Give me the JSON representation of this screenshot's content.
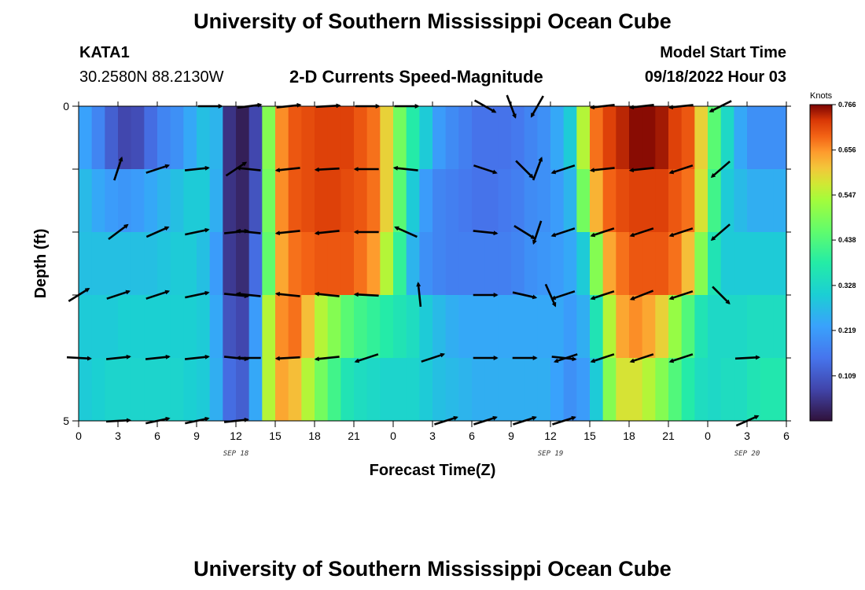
{
  "titles": {
    "main": "University of Southern Mississippi Ocean Cube",
    "station": "KATA1",
    "coords": "30.2580N  88.2130W",
    "chart_title": "2-D Currents Speed-Magnitude",
    "model_start_label": "Model Start Time",
    "model_start_value": "09/18/2022 Hour 03",
    "repeated_title": "University of Southern Mississippi Ocean Cube"
  },
  "chart_data": {
    "type": "heatmap",
    "title": "2-D Currents Speed-Magnitude",
    "xlabel": "Forecast Time(Z)",
    "ylabel": "Depth (ft)",
    "x_tick_labels": [
      "0",
      "3",
      "6",
      "9",
      "12",
      "15",
      "18",
      "21",
      "0",
      "3",
      "6",
      "9",
      "12",
      "15",
      "18",
      "21",
      "0",
      "3",
      "6"
    ],
    "date_labels": [
      {
        "text": "SEP 18",
        "hour_index": 12
      },
      {
        "text": "SEP 19",
        "hour_index": 36
      },
      {
        "text": "SEP 20",
        "hour_index": 51
      }
    ],
    "y_tick_labels": [
      "0",
      "5"
    ],
    "ylim": [
      0,
      5
    ],
    "x_hours": 54,
    "colorbar": {
      "unit": "Knots",
      "ticks": [
        "0.766",
        "0.656",
        "0.547",
        "0.438",
        "0.328",
        "0.219",
        "0.109"
      ],
      "range": [
        0.0,
        0.766
      ]
    },
    "depth_rows": 5,
    "hours": [
      0,
      1,
      2,
      3,
      4,
      5,
      6,
      7,
      8,
      9,
      10,
      11,
      12,
      13,
      14,
      15,
      16,
      17,
      18,
      19,
      20,
      21,
      22,
      23,
      24,
      25,
      26,
      27,
      28,
      29,
      30,
      31,
      32,
      33,
      34,
      35,
      36,
      37,
      38,
      39,
      40,
      41,
      42,
      43,
      44,
      45,
      46,
      47,
      48,
      49,
      50,
      51,
      52,
      53
    ],
    "speed_by_depth": [
      [
        0.23,
        0.18,
        0.12,
        0.08,
        0.09,
        0.14,
        0.18,
        0.2,
        0.24,
        0.28,
        0.26,
        0.05,
        0.02,
        0.08,
        0.5,
        0.66,
        0.7,
        0.71,
        0.72,
        0.72,
        0.72,
        0.7,
        0.68,
        0.6,
        0.48,
        0.38,
        0.3,
        0.22,
        0.19,
        0.17,
        0.15,
        0.15,
        0.15,
        0.16,
        0.18,
        0.2,
        0.24,
        0.3,
        0.55,
        0.68,
        0.72,
        0.74,
        0.76,
        0.76,
        0.75,
        0.72,
        0.7,
        0.6,
        0.45,
        0.33,
        0.24,
        0.2,
        0.2,
        0.2
      ],
      [
        0.27,
        0.24,
        0.22,
        0.21,
        0.22,
        0.24,
        0.26,
        0.28,
        0.3,
        0.3,
        0.25,
        0.05,
        0.03,
        0.1,
        0.48,
        0.66,
        0.7,
        0.71,
        0.72,
        0.72,
        0.71,
        0.7,
        0.68,
        0.6,
        0.45,
        0.3,
        0.22,
        0.18,
        0.17,
        0.16,
        0.15,
        0.15,
        0.16,
        0.17,
        0.19,
        0.2,
        0.22,
        0.26,
        0.48,
        0.63,
        0.69,
        0.71,
        0.72,
        0.72,
        0.72,
        0.7,
        0.68,
        0.58,
        0.42,
        0.3,
        0.27,
        0.25,
        0.25,
        0.25
      ],
      [
        0.28,
        0.28,
        0.28,
        0.28,
        0.28,
        0.28,
        0.29,
        0.3,
        0.3,
        0.28,
        0.22,
        0.06,
        0.04,
        0.14,
        0.46,
        0.64,
        0.68,
        0.69,
        0.7,
        0.7,
        0.7,
        0.68,
        0.65,
        0.55,
        0.4,
        0.26,
        0.2,
        0.18,
        0.17,
        0.17,
        0.17,
        0.17,
        0.17,
        0.18,
        0.2,
        0.21,
        0.22,
        0.24,
        0.3,
        0.5,
        0.64,
        0.68,
        0.7,
        0.7,
        0.7,
        0.68,
        0.62,
        0.5,
        0.36,
        0.3,
        0.3,
        0.3,
        0.3,
        0.3
      ],
      [
        0.3,
        0.3,
        0.3,
        0.31,
        0.31,
        0.31,
        0.31,
        0.31,
        0.31,
        0.3,
        0.24,
        0.1,
        0.08,
        0.22,
        0.55,
        0.66,
        0.68,
        0.62,
        0.55,
        0.5,
        0.45,
        0.42,
        0.4,
        0.38,
        0.36,
        0.34,
        0.3,
        0.27,
        0.25,
        0.24,
        0.24,
        0.24,
        0.24,
        0.24,
        0.24,
        0.24,
        0.24,
        0.22,
        0.25,
        0.36,
        0.55,
        0.64,
        0.66,
        0.64,
        0.6,
        0.52,
        0.44,
        0.36,
        0.33,
        0.33,
        0.33,
        0.34,
        0.34,
        0.34
      ],
      [
        0.3,
        0.31,
        0.32,
        0.32,
        0.32,
        0.32,
        0.32,
        0.32,
        0.31,
        0.3,
        0.25,
        0.14,
        0.12,
        0.24,
        0.55,
        0.64,
        0.62,
        0.55,
        0.48,
        0.42,
        0.36,
        0.34,
        0.33,
        0.32,
        0.32,
        0.32,
        0.3,
        0.28,
        0.27,
        0.26,
        0.25,
        0.25,
        0.25,
        0.25,
        0.25,
        0.25,
        0.23,
        0.2,
        0.22,
        0.3,
        0.5,
        0.58,
        0.58,
        0.55,
        0.5,
        0.44,
        0.38,
        0.34,
        0.33,
        0.34,
        0.34,
        0.36,
        0.37,
        0.37
      ]
    ],
    "vector_rows_depth": [
      0,
      1,
      2,
      3,
      4,
      5
    ],
    "vectors": [
      [
        {
          "h": 10,
          "dx": 0.9,
          "dy": 0
        },
        {
          "h": 13,
          "dx": 0.8,
          "dy": -0.1
        },
        {
          "h": 16,
          "dx": 0.95,
          "dy": -0.1
        },
        {
          "h": 19,
          "dx": 0.9,
          "dy": -0.05
        },
        {
          "h": 22,
          "dx": 0.9,
          "dy": 0
        },
        {
          "h": 25,
          "dx": 0.5,
          "dy": 0
        },
        {
          "h": 31,
          "dx": 0.7,
          "dy": 0.4
        },
        {
          "h": 33,
          "dx": 0.3,
          "dy": 0.8
        },
        {
          "h": 35,
          "dx": -0.4,
          "dy": 0.7
        },
        {
          "h": 40,
          "dx": -0.9,
          "dy": 0.1
        },
        {
          "h": 43,
          "dx": -0.9,
          "dy": 0.1
        },
        {
          "h": 46,
          "dx": -0.95,
          "dy": 0.1
        },
        {
          "h": 49,
          "dx": -0.8,
          "dy": 0.4
        }
      ],
      [
        {
          "h": 3,
          "dx": 0.3,
          "dy": -0.9
        },
        {
          "h": 6,
          "dx": 0.9,
          "dy": -0.3
        },
        {
          "h": 9,
          "dx": 0.95,
          "dy": -0.1
        },
        {
          "h": 12,
          "dx": 0.9,
          "dy": -0.6
        },
        {
          "h": 13,
          "dx": -0.95,
          "dy": -0.1
        },
        {
          "h": 16,
          "dx": -0.95,
          "dy": 0.1
        },
        {
          "h": 19,
          "dx": -0.95,
          "dy": 0.05
        },
        {
          "h": 22,
          "dx": -0.95,
          "dy": 0
        },
        {
          "h": 25,
          "dx": -0.95,
          "dy": -0.1
        },
        {
          "h": 31,
          "dx": 0.9,
          "dy": 0.3
        },
        {
          "h": 34,
          "dx": 0.6,
          "dy": 0.6
        },
        {
          "h": 35,
          "dx": 0.3,
          "dy": -0.8
        },
        {
          "h": 37,
          "dx": -0.9,
          "dy": 0.3
        },
        {
          "h": 40,
          "dx": -0.95,
          "dy": 0.1
        },
        {
          "h": 43,
          "dx": -0.95,
          "dy": 0.1
        },
        {
          "h": 46,
          "dx": -0.9,
          "dy": 0.3
        },
        {
          "h": 49,
          "dx": -0.7,
          "dy": 0.6
        }
      ],
      [
        {
          "h": 3,
          "dx": 0.8,
          "dy": -0.6
        },
        {
          "h": 6,
          "dx": 0.9,
          "dy": -0.4
        },
        {
          "h": 9,
          "dx": 0.95,
          "dy": -0.2
        },
        {
          "h": 12,
          "dx": 0.95,
          "dy": -0.1
        },
        {
          "h": 13,
          "dx": -0.95,
          "dy": -0.1
        },
        {
          "h": 16,
          "dx": -0.95,
          "dy": 0.1
        },
        {
          "h": 19,
          "dx": -0.95,
          "dy": 0.1
        },
        {
          "h": 22,
          "dx": -0.95,
          "dy": 0
        },
        {
          "h": 25,
          "dx": -0.9,
          "dy": -0.4
        },
        {
          "h": 31,
          "dx": 0.95,
          "dy": 0.1
        },
        {
          "h": 34,
          "dx": 0.8,
          "dy": 0.5
        },
        {
          "h": 35,
          "dx": -0.3,
          "dy": 0.9
        },
        {
          "h": 37,
          "dx": -0.9,
          "dy": 0.3
        },
        {
          "h": 40,
          "dx": -0.9,
          "dy": 0.3
        },
        {
          "h": 43,
          "dx": -0.9,
          "dy": 0.3
        },
        {
          "h": 46,
          "dx": -0.9,
          "dy": 0.3
        },
        {
          "h": 49,
          "dx": -0.7,
          "dy": 0.6
        }
      ],
      [
        {
          "h": 0,
          "dx": 0.8,
          "dy": -0.5
        },
        {
          "h": 3,
          "dx": 0.9,
          "dy": -0.3
        },
        {
          "h": 6,
          "dx": 0.9,
          "dy": -0.3
        },
        {
          "h": 9,
          "dx": 0.95,
          "dy": -0.2
        },
        {
          "h": 12,
          "dx": 0.95,
          "dy": 0.1
        },
        {
          "h": 13,
          "dx": -0.95,
          "dy": -0.1
        },
        {
          "h": 16,
          "dx": -0.95,
          "dy": -0.1
        },
        {
          "h": 19,
          "dx": -0.95,
          "dy": -0.1
        },
        {
          "h": 22,
          "dx": -0.95,
          "dy": -0.05
        },
        {
          "h": 26,
          "dx": -0.1,
          "dy": -0.95
        },
        {
          "h": 31,
          "dx": 0.95,
          "dy": 0
        },
        {
          "h": 34,
          "dx": 0.9,
          "dy": 0.2
        },
        {
          "h": 36,
          "dx": 0.4,
          "dy": 0.9
        },
        {
          "h": 37,
          "dx": -0.9,
          "dy": 0.3
        },
        {
          "h": 40,
          "dx": -0.9,
          "dy": 0.3
        },
        {
          "h": 43,
          "dx": -0.9,
          "dy": 0.35
        },
        {
          "h": 46,
          "dx": -0.9,
          "dy": 0.3
        },
        {
          "h": 49,
          "dx": 0.7,
          "dy": 0.7
        }
      ],
      [
        {
          "h": 0,
          "dx": 0.95,
          "dy": 0.05
        },
        {
          "h": 3,
          "dx": 0.95,
          "dy": -0.1
        },
        {
          "h": 6,
          "dx": 0.95,
          "dy": -0.1
        },
        {
          "h": 9,
          "dx": 0.95,
          "dy": -0.1
        },
        {
          "h": 12,
          "dx": 0.95,
          "dy": 0.1
        },
        {
          "h": 13,
          "dx": -0.95,
          "dy": 0
        },
        {
          "h": 16,
          "dx": -0.95,
          "dy": 0.05
        },
        {
          "h": 19,
          "dx": -0.95,
          "dy": 0.1
        },
        {
          "h": 22,
          "dx": -0.9,
          "dy": 0.3
        },
        {
          "h": 27,
          "dx": 0.9,
          "dy": -0.3
        },
        {
          "h": 31,
          "dx": 0.95,
          "dy": 0
        },
        {
          "h": 34,
          "dx": 0.95,
          "dy": 0
        },
        {
          "h": 37,
          "dx": 0.95,
          "dy": 0.1
        },
        {
          "h": 37.2,
          "dx": -0.9,
          "dy": 0.3
        },
        {
          "h": 40,
          "dx": -0.9,
          "dy": 0.3
        },
        {
          "h": 43,
          "dx": -0.9,
          "dy": 0.3
        },
        {
          "h": 46,
          "dx": -0.9,
          "dy": 0.3
        },
        {
          "h": 51,
          "dx": 0.95,
          "dy": -0.05
        }
      ],
      [
        {
          "h": 3,
          "dx": 0.95,
          "dy": -0.05
        },
        {
          "h": 6,
          "dx": 0.95,
          "dy": -0.2
        },
        {
          "h": 9,
          "dx": 0.95,
          "dy": -0.2
        },
        {
          "h": 12,
          "dx": 0.95,
          "dy": -0.1
        },
        {
          "h": 28,
          "dx": 0.95,
          "dy": -0.3
        },
        {
          "h": 31,
          "dx": 0.95,
          "dy": -0.3
        },
        {
          "h": 34,
          "dx": 0.95,
          "dy": -0.3
        },
        {
          "h": 37,
          "dx": 0.95,
          "dy": -0.3
        },
        {
          "h": 51,
          "dx": 0.9,
          "dy": -0.4
        }
      ]
    ]
  }
}
